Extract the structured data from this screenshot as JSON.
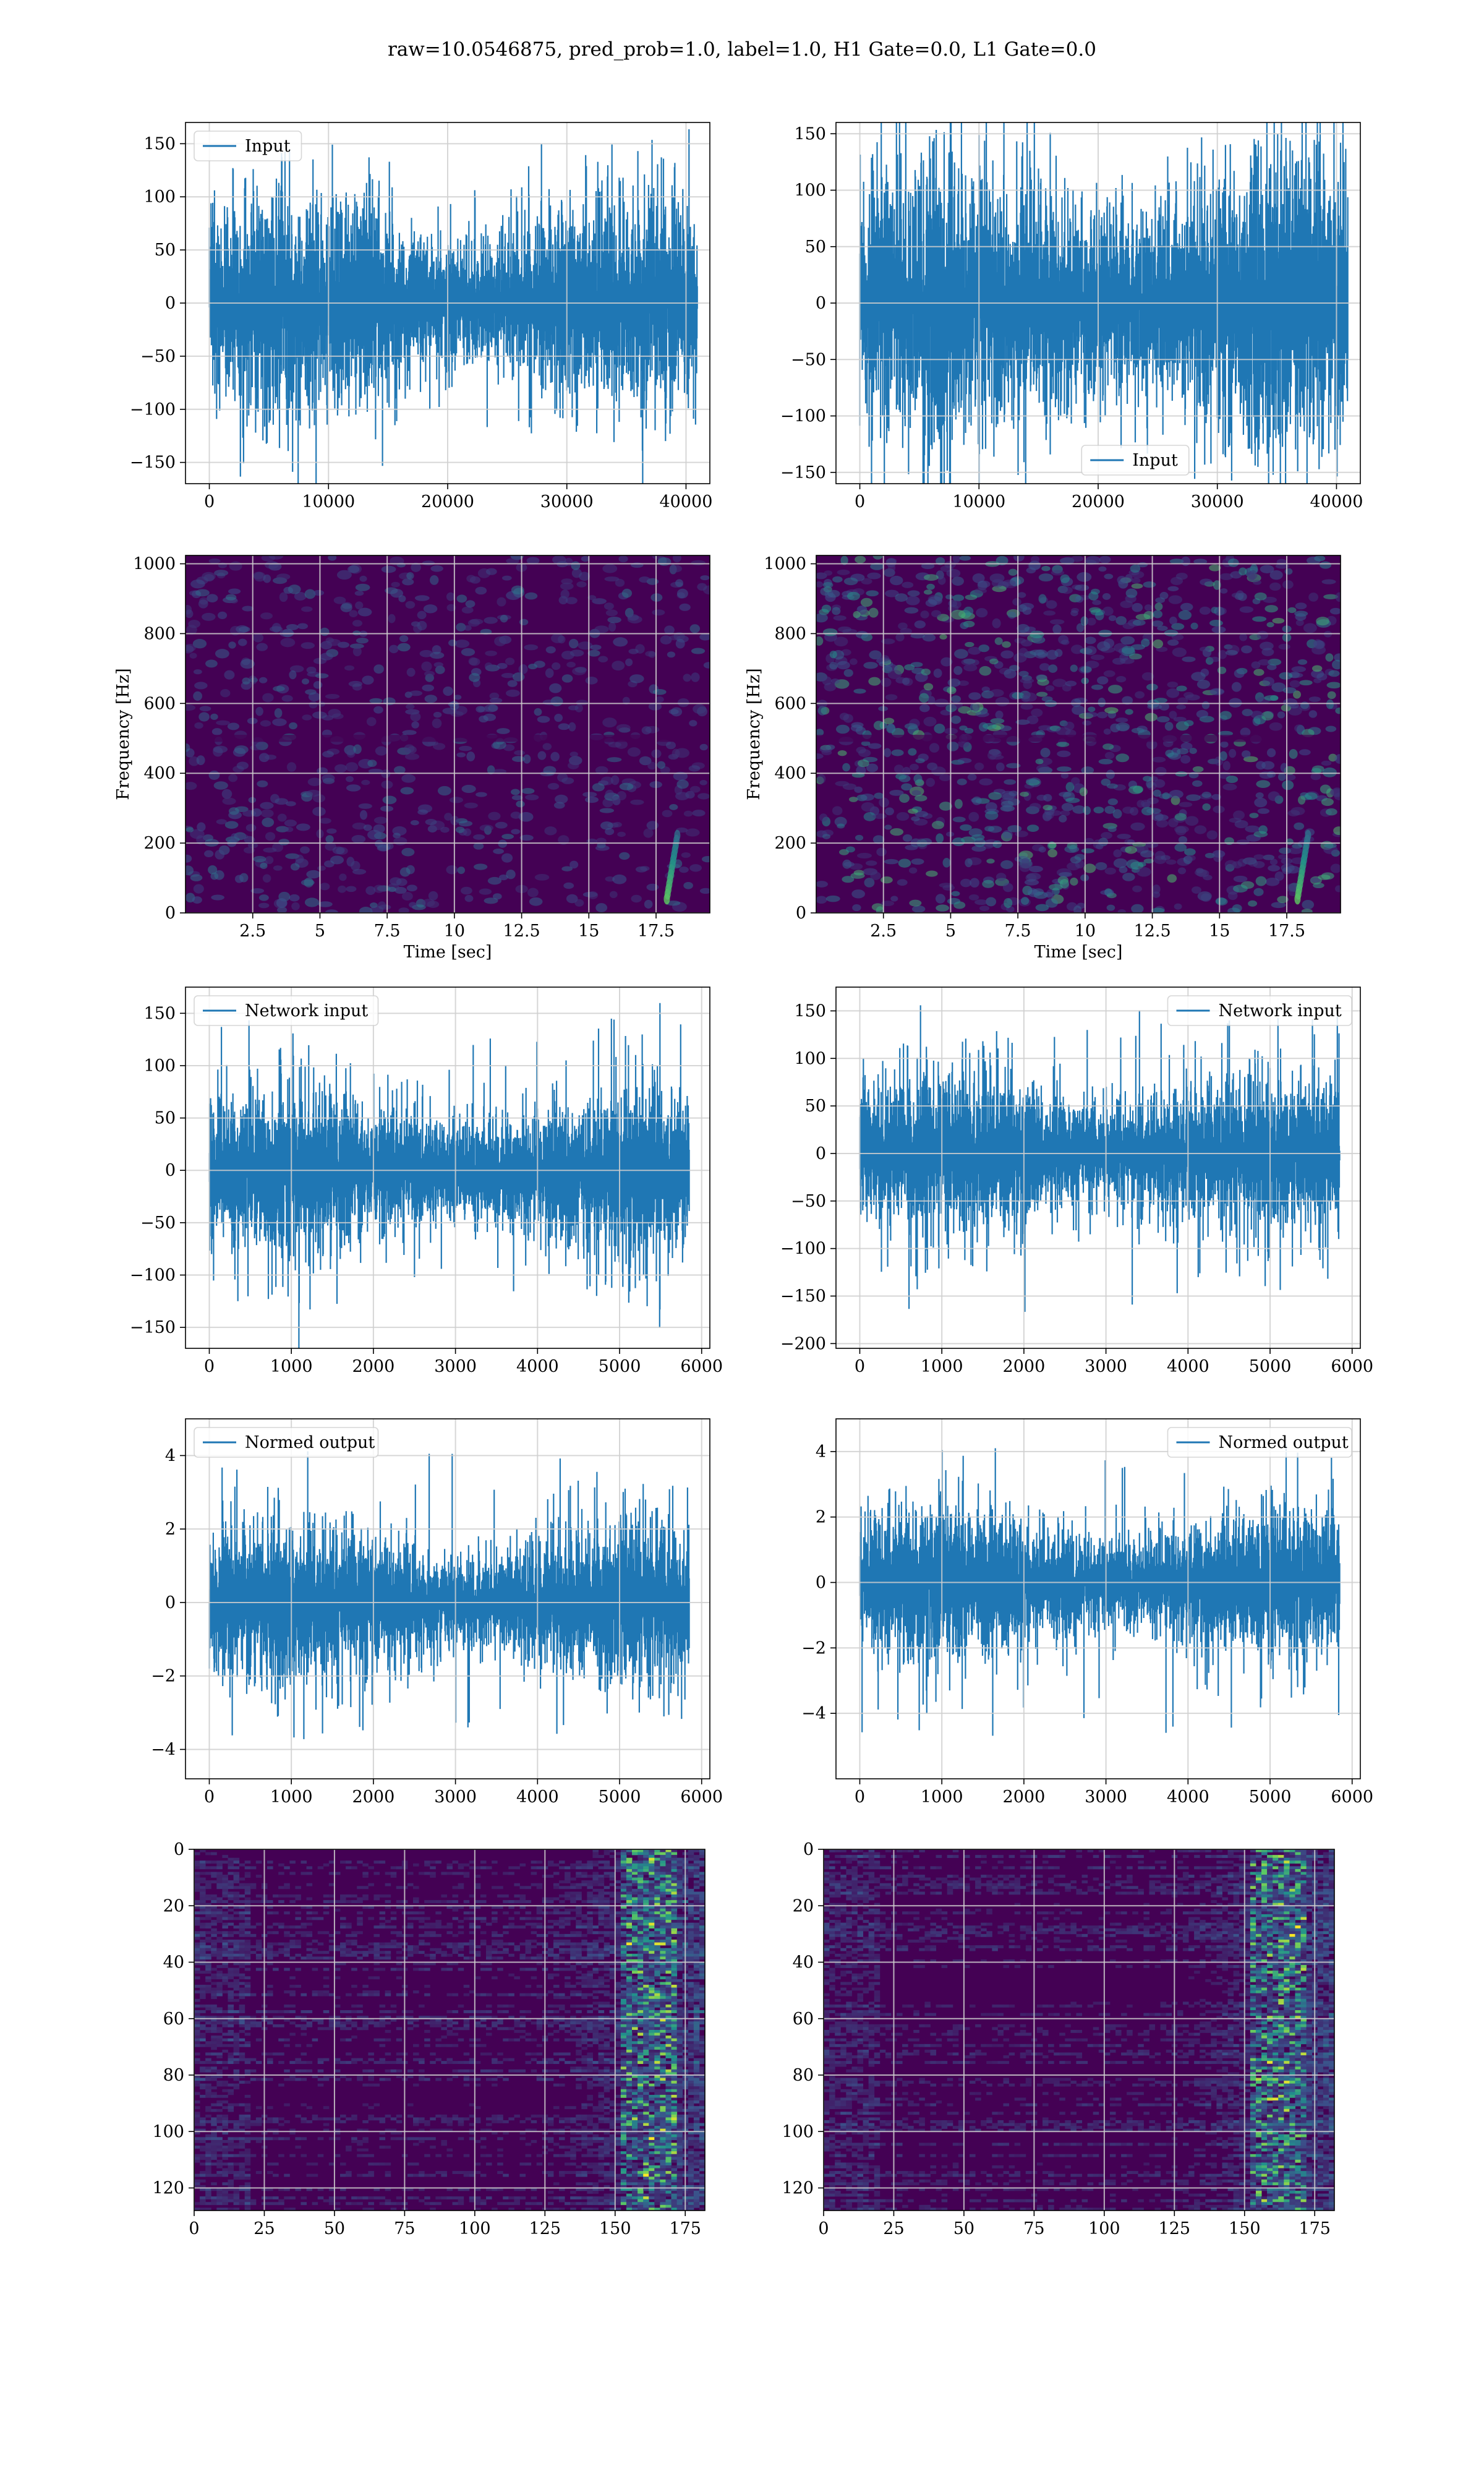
{
  "title": "raw=10.0546875, pred_prob=1.0, label=1.0, H1 Gate=0.0, L1 Gate=0.0",
  "colors": {
    "line": "#1f77b4",
    "grid": "#cfcfcf",
    "viridis_dark": "#440154"
  },
  "chart_data": [
    {
      "id": "h1-input",
      "type": "line",
      "legend": [
        "Input"
      ],
      "legend_loc": "upper-left",
      "xlim": [
        -2000,
        42000
      ],
      "ylim": [
        -170,
        170
      ],
      "xticks": [
        0,
        10000,
        20000,
        30000,
        40000
      ],
      "yticks": [
        -150,
        -100,
        -50,
        0,
        50,
        100,
        150
      ],
      "xlabel": "",
      "ylabel": "",
      "n_samples": 40960,
      "noise_amp": 35,
      "max": 160,
      "min": -155
    },
    {
      "id": "l1-input",
      "type": "line",
      "legend": [
        "Input"
      ],
      "legend_loc": "lower-center",
      "xlim": [
        -2000,
        42000
      ],
      "ylim": [
        -160,
        160
      ],
      "xticks": [
        0,
        10000,
        20000,
        30000,
        40000
      ],
      "yticks": [
        -150,
        -100,
        -50,
        0,
        50,
        100,
        150
      ],
      "xlabel": "",
      "ylabel": "",
      "n_samples": 40960,
      "noise_amp": 45,
      "max": 152,
      "min": -150
    },
    {
      "id": "h1-spectrogram",
      "type": "heatmap",
      "colormap": "viridis",
      "xlim": [
        0,
        19.5
      ],
      "ylim": [
        0,
        1024
      ],
      "xticks": [
        2.5,
        5.0,
        7.5,
        10.0,
        12.5,
        15.0,
        17.5
      ],
      "yticks": [
        0,
        200,
        400,
        600,
        800,
        1000
      ],
      "xlabel": "Time [sec]",
      "ylabel": "Frequency [Hz]",
      "intensity": 0.25
    },
    {
      "id": "l1-spectrogram",
      "type": "heatmap",
      "colormap": "viridis",
      "xlim": [
        0,
        19.5
      ],
      "ylim": [
        0,
        1024
      ],
      "xticks": [
        2.5,
        5.0,
        7.5,
        10.0,
        12.5,
        15.0,
        17.5
      ],
      "yticks": [
        0,
        200,
        400,
        600,
        800,
        1000
      ],
      "xlabel": "Time [sec]",
      "ylabel": "Frequency [Hz]",
      "intensity": 0.55
    },
    {
      "id": "h1-network-input",
      "type": "line",
      "legend": [
        "Network input"
      ],
      "legend_loc": "upper-left",
      "xlim": [
        -290,
        6100
      ],
      "ylim": [
        -170,
        175
      ],
      "xticks": [
        0,
        1000,
        2000,
        3000,
        4000,
        5000,
        6000
      ],
      "yticks": [
        -150,
        -100,
        -50,
        0,
        50,
        100,
        150
      ],
      "xlabel": "",
      "ylabel": "",
      "n_samples": 5850,
      "noise_amp": 28,
      "max": 160,
      "min": -152
    },
    {
      "id": "l1-network-input",
      "type": "line",
      "legend": [
        "Network input"
      ],
      "legend_loc": "upper-right",
      "xlim": [
        -290,
        6100
      ],
      "ylim": [
        -205,
        175
      ],
      "xticks": [
        0,
        1000,
        2000,
        3000,
        4000,
        5000,
        6000
      ],
      "yticks": [
        -200,
        -150,
        -100,
        -50,
        0,
        50,
        100,
        150
      ],
      "xlabel": "",
      "ylabel": "",
      "n_samples": 5850,
      "noise_amp": 30,
      "max": 168,
      "min": -188
    },
    {
      "id": "h1-normed-output",
      "type": "line",
      "legend": [
        "Normed output"
      ],
      "legend_loc": "upper-left",
      "xlim": [
        -290,
        6100
      ],
      "ylim": [
        -4.8,
        5.0
      ],
      "xticks": [
        0,
        1000,
        2000,
        3000,
        4000,
        5000,
        6000
      ],
      "yticks": [
        -4,
        -2,
        0,
        2,
        4
      ],
      "xlabel": "",
      "ylabel": "",
      "n_samples": 5850,
      "noise_amp": 0.75,
      "max": 4.6,
      "min": -4.3
    },
    {
      "id": "l1-normed-output",
      "type": "line",
      "legend": [
        "Normed output"
      ],
      "legend_loc": "upper-right",
      "xlim": [
        -290,
        6100
      ],
      "ylim": [
        -6.0,
        5.0
      ],
      "xticks": [
        0,
        1000,
        2000,
        3000,
        4000,
        5000,
        6000
      ],
      "yticks": [
        -4,
        -2,
        0,
        2,
        4
      ],
      "xlabel": "",
      "ylabel": "",
      "n_samples": 5850,
      "noise_amp": 0.8,
      "max": 4.8,
      "min": -5.4
    },
    {
      "id": "h1-feature-map",
      "type": "heatmap",
      "colormap": "viridis",
      "xlim": [
        0,
        182
      ],
      "ylim": [
        128,
        0
      ],
      "xticks": [
        0,
        25,
        50,
        75,
        100,
        125,
        150,
        175
      ],
      "yticks": [
        0,
        20,
        40,
        60,
        80,
        100,
        120
      ],
      "xlabel": "",
      "ylabel": "",
      "rows": 128,
      "cols": 182
    },
    {
      "id": "l1-feature-map",
      "type": "heatmap",
      "colormap": "viridis",
      "xlim": [
        0,
        182
      ],
      "ylim": [
        128,
        0
      ],
      "xticks": [
        0,
        25,
        50,
        75,
        100,
        125,
        150,
        175
      ],
      "yticks": [
        0,
        20,
        40,
        60,
        80,
        100,
        120
      ],
      "xlabel": "",
      "ylabel": "",
      "rows": 128,
      "cols": 182
    }
  ]
}
